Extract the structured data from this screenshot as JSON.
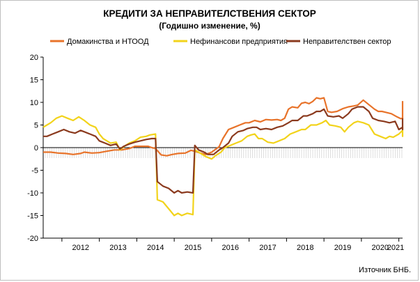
{
  "chart_data": {
    "type": "line",
    "title": "КРЕДИТИ ЗА НЕПРАВИТЕЛСТВЕНИЯ СЕКТОР",
    "subtitle": "(Годишно изменение, %)",
    "source": "Източник БНБ.",
    "ylim": [
      -20,
      20
    ],
    "y_ticks": [
      20,
      15,
      10,
      5,
      0,
      -5,
      -10,
      -15,
      -20
    ],
    "x_ticks": [
      "2012",
      "2013",
      "2014",
      "2015",
      "2016",
      "2017",
      "2018",
      "2019",
      "2020",
      "2021"
    ],
    "x_start": 2011.5,
    "x_end": 2021.1,
    "grid": false,
    "legend_position": "top",
    "zero_line_hatching": true,
    "series": [
      {
        "name": "Домакинства и НТООД",
        "color": "#E8732A",
        "points": [
          [
            2011.5,
            -1
          ],
          [
            2011.7,
            -1
          ],
          [
            2011.9,
            -1.2
          ],
          [
            2012.1,
            -1.3
          ],
          [
            2012.3,
            -1.5
          ],
          [
            2012.5,
            -1.3
          ],
          [
            2012.6,
            -1
          ],
          [
            2012.8,
            -1.2
          ],
          [
            2013.0,
            -1.1
          ],
          [
            2013.2,
            -0.8
          ],
          [
            2013.4,
            -0.5
          ],
          [
            2013.6,
            -0.5
          ],
          [
            2013.8,
            -0.2
          ],
          [
            2013.95,
            0.3
          ],
          [
            2014.1,
            0.3
          ],
          [
            2014.3,
            0.3
          ],
          [
            2014.4,
            0
          ],
          [
            2014.5,
            -0.2
          ],
          [
            2014.65,
            -1.6
          ],
          [
            2014.8,
            -1.8
          ],
          [
            2014.95,
            -1.5
          ],
          [
            2015.1,
            -1.3
          ],
          [
            2015.3,
            -1.2
          ],
          [
            2015.45,
            -0.6
          ],
          [
            2015.55,
            -0.8
          ],
          [
            2015.7,
            -1.2
          ],
          [
            2015.85,
            -1.5
          ],
          [
            2016.0,
            -1
          ],
          [
            2016.2,
            0.2
          ],
          [
            2016.3,
            2
          ],
          [
            2016.45,
            4
          ],
          [
            2016.6,
            4.5
          ],
          [
            2016.75,
            5
          ],
          [
            2016.9,
            5.5
          ],
          [
            2017.0,
            5.5
          ],
          [
            2017.15,
            6
          ],
          [
            2017.3,
            5.7
          ],
          [
            2017.45,
            6.2
          ],
          [
            2017.6,
            6.1
          ],
          [
            2017.75,
            6.2
          ],
          [
            2017.85,
            6
          ],
          [
            2017.95,
            6.5
          ],
          [
            2018.05,
            8.5
          ],
          [
            2018.15,
            9
          ],
          [
            2018.3,
            8.8
          ],
          [
            2018.4,
            9.8
          ],
          [
            2018.5,
            10
          ],
          [
            2018.6,
            9.7
          ],
          [
            2018.7,
            10.2
          ],
          [
            2018.8,
            11
          ],
          [
            2018.9,
            10.8
          ],
          [
            2019.0,
            11
          ],
          [
            2019.1,
            8
          ],
          [
            2019.2,
            7.8
          ],
          [
            2019.35,
            8
          ],
          [
            2019.5,
            8.6
          ],
          [
            2019.65,
            9
          ],
          [
            2019.8,
            9.2
          ],
          [
            2019.9,
            9.4
          ],
          [
            2020.05,
            10.5
          ],
          [
            2020.2,
            9.5
          ],
          [
            2020.35,
            8.5
          ],
          [
            2020.45,
            8
          ],
          [
            2020.55,
            8
          ],
          [
            2020.65,
            7.8
          ],
          [
            2020.8,
            7.5
          ],
          [
            2020.95,
            6.8
          ],
          [
            2021.05,
            6.4
          ],
          [
            2021.15,
            6.5
          ],
          [
            2021.25,
            7.2
          ],
          [
            2021.35,
            7.5
          ],
          [
            2021.45,
            9
          ],
          [
            2021.55,
            10
          ],
          [
            2021.65,
            10.3
          ]
        ]
      },
      {
        "name": "Нефинансови предприятия",
        "color": "#F2D31B",
        "points": [
          [
            2011.5,
            4.5
          ],
          [
            2011.6,
            5
          ],
          [
            2011.7,
            5.5
          ],
          [
            2011.85,
            6.5
          ],
          [
            2012.0,
            7
          ],
          [
            2012.15,
            6.5
          ],
          [
            2012.3,
            6
          ],
          [
            2012.45,
            6.8
          ],
          [
            2012.6,
            6
          ],
          [
            2012.75,
            5
          ],
          [
            2012.9,
            4.5
          ],
          [
            2013.0,
            3
          ],
          [
            2013.1,
            2
          ],
          [
            2013.2,
            1.5
          ],
          [
            2013.3,
            1
          ],
          [
            2013.45,
            1.2
          ],
          [
            2013.55,
            -0.5
          ],
          [
            2013.7,
            0.5
          ],
          [
            2013.8,
            1
          ],
          [
            2013.95,
            1.5
          ],
          [
            2014.1,
            2.3
          ],
          [
            2014.25,
            2.5
          ],
          [
            2014.35,
            2.8
          ],
          [
            2014.5,
            3
          ],
          [
            2014.55,
            -11.5
          ],
          [
            2014.7,
            -12
          ],
          [
            2014.8,
            -13
          ],
          [
            2014.9,
            -14
          ],
          [
            2015.0,
            -15
          ],
          [
            2015.1,
            -14.5
          ],
          [
            2015.2,
            -15
          ],
          [
            2015.35,
            -14.5
          ],
          [
            2015.5,
            -14.8
          ],
          [
            2015.55,
            -0.5
          ],
          [
            2015.65,
            -1
          ],
          [
            2015.75,
            -1.5
          ],
          [
            2015.85,
            -2
          ],
          [
            2016.0,
            -2.5
          ],
          [
            2016.1,
            -1.8
          ],
          [
            2016.25,
            -1
          ],
          [
            2016.35,
            0
          ],
          [
            2016.5,
            0.5
          ],
          [
            2016.65,
            1
          ],
          [
            2016.8,
            1.5
          ],
          [
            2016.95,
            2.5
          ],
          [
            2017.05,
            2.8
          ],
          [
            2017.15,
            3
          ],
          [
            2017.25,
            2
          ],
          [
            2017.35,
            2
          ],
          [
            2017.5,
            1.2
          ],
          [
            2017.65,
            1
          ],
          [
            2017.8,
            1.5
          ],
          [
            2017.95,
            2
          ],
          [
            2018.1,
            3
          ],
          [
            2018.25,
            3.5
          ],
          [
            2018.4,
            4
          ],
          [
            2018.5,
            4
          ],
          [
            2018.65,
            5
          ],
          [
            2018.8,
            5
          ],
          [
            2018.95,
            5.5
          ],
          [
            2019.05,
            6
          ],
          [
            2019.15,
            5
          ],
          [
            2019.3,
            4.8
          ],
          [
            2019.45,
            4.5
          ],
          [
            2019.55,
            3.5
          ],
          [
            2019.65,
            4.5
          ],
          [
            2019.8,
            5.5
          ],
          [
            2019.9,
            5.8
          ],
          [
            2020.05,
            5.5
          ],
          [
            2020.2,
            5
          ],
          [
            2020.35,
            3
          ],
          [
            2020.5,
            2.5
          ],
          [
            2020.65,
            2
          ],
          [
            2020.75,
            2.5
          ],
          [
            2020.85,
            2.3
          ],
          [
            2021.0,
            3
          ],
          [
            2021.1,
            3.8
          ],
          [
            2021.2,
            2.5
          ],
          [
            2021.3,
            2.8
          ],
          [
            2021.45,
            4.5
          ],
          [
            2021.55,
            4
          ],
          [
            2021.65,
            3.2
          ]
        ]
      },
      {
        "name": "Неправителствен сектор",
        "color": "#8B3A1E",
        "points": [
          [
            2011.5,
            2.5
          ],
          [
            2011.6,
            2.5
          ],
          [
            2011.75,
            3
          ],
          [
            2011.9,
            3.5
          ],
          [
            2012.05,
            4
          ],
          [
            2012.2,
            3.5
          ],
          [
            2012.35,
            3.2
          ],
          [
            2012.5,
            3.8
          ],
          [
            2012.6,
            3.5
          ],
          [
            2012.75,
            3
          ],
          [
            2012.9,
            2.5
          ],
          [
            2013.0,
            1.5
          ],
          [
            2013.15,
            1
          ],
          [
            2013.3,
            0.5
          ],
          [
            2013.45,
            0.8
          ],
          [
            2013.55,
            -0.3
          ],
          [
            2013.65,
            0.3
          ],
          [
            2013.8,
            0.8
          ],
          [
            2013.95,
            1.2
          ],
          [
            2014.1,
            1.5
          ],
          [
            2014.25,
            1.8
          ],
          [
            2014.4,
            2
          ],
          [
            2014.5,
            2
          ],
          [
            2014.55,
            -7.5
          ],
          [
            2014.7,
            -8.5
          ],
          [
            2014.85,
            -9
          ],
          [
            2015.0,
            -10
          ],
          [
            2015.1,
            -9.5
          ],
          [
            2015.2,
            -10
          ],
          [
            2015.35,
            -9.8
          ],
          [
            2015.5,
            -10
          ],
          [
            2015.55,
            0.5
          ],
          [
            2015.65,
            -0.5
          ],
          [
            2015.8,
            -1
          ],
          [
            2015.9,
            -1.5
          ],
          [
            2016.05,
            -1.5
          ],
          [
            2016.2,
            -0.5
          ],
          [
            2016.3,
            0
          ],
          [
            2016.45,
            1
          ],
          [
            2016.55,
            2.5
          ],
          [
            2016.7,
            3.5
          ],
          [
            2016.85,
            3.8
          ],
          [
            2016.95,
            4.2
          ],
          [
            2017.1,
            4.5
          ],
          [
            2017.2,
            4.5
          ],
          [
            2017.3,
            4
          ],
          [
            2017.45,
            4.2
          ],
          [
            2017.6,
            4
          ],
          [
            2017.75,
            4.5
          ],
          [
            2017.9,
            4.8
          ],
          [
            2018.05,
            5.5
          ],
          [
            2018.15,
            6
          ],
          [
            2018.3,
            6
          ],
          [
            2018.45,
            7
          ],
          [
            2018.55,
            7
          ],
          [
            2018.7,
            7.5
          ],
          [
            2018.8,
            8
          ],
          [
            2018.9,
            8
          ],
          [
            2019.0,
            8.5
          ],
          [
            2019.1,
            7
          ],
          [
            2019.25,
            6.8
          ],
          [
            2019.4,
            7
          ],
          [
            2019.5,
            6.5
          ],
          [
            2019.65,
            7.5
          ],
          [
            2019.75,
            8.5
          ],
          [
            2019.9,
            9
          ],
          [
            2020.05,
            9
          ],
          [
            2020.2,
            8
          ],
          [
            2020.3,
            6.5
          ],
          [
            2020.45,
            6
          ],
          [
            2020.6,
            5.8
          ],
          [
            2020.75,
            5.5
          ],
          [
            2020.9,
            5.8
          ],
          [
            2021.0,
            4
          ],
          [
            2021.15,
            4.5
          ],
          [
            2021.3,
            4
          ],
          [
            2021.45,
            6
          ],
          [
            2021.55,
            6.4
          ],
          [
            2021.65,
            6.5
          ]
        ]
      }
    ]
  }
}
